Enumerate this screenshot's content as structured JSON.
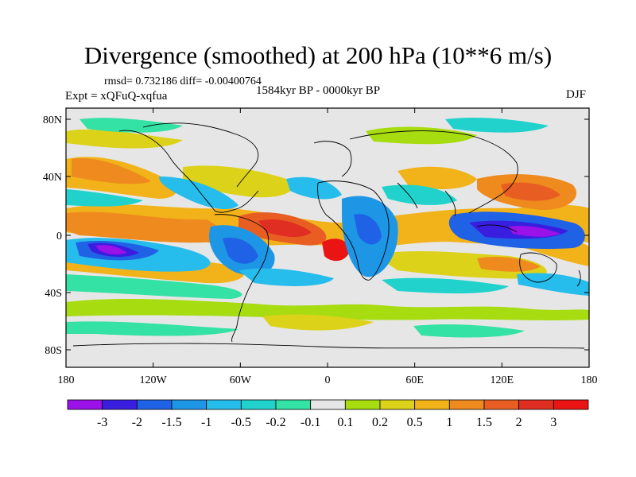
{
  "title": "Divergence (smoothed) at 200 hPa (10**6 m/s)",
  "stats": {
    "rmsd_label": "rmsd= 0.732186 diff= -0.00400764"
  },
  "experiment_label": "Expt = xQFuQ-xqfua",
  "period_label": "1584kyr BP - 0000kyr BP",
  "season": "DJF",
  "axes": {
    "lat_labels": [
      "80N",
      "40N",
      "0",
      "40S",
      "80S"
    ],
    "lon_labels": [
      "180",
      "120W",
      "60W",
      "0",
      "60E",
      "120E",
      "180"
    ]
  },
  "colorbar": {
    "labels": [
      "-3",
      "-2",
      "-1.5",
      "-1",
      "-0.5",
      "-0.2",
      "-0.1",
      "0.1",
      "0.2",
      "0.5",
      "1",
      "1.5",
      "2",
      "3"
    ],
    "colors": [
      "#9a12e8",
      "#3a1ee0",
      "#1f62e6",
      "#1e96e6",
      "#26bcec",
      "#21d2cc",
      "#33e2a4",
      "#e6e6e6",
      "#a6dc10",
      "#dcd21a",
      "#f2b21a",
      "#ee8a1e",
      "#e85e22",
      "#e02e22",
      "#ea1414"
    ]
  },
  "map_colors": {
    "ocean_background": "#e6e6e6",
    "coastline": "#000000"
  }
}
